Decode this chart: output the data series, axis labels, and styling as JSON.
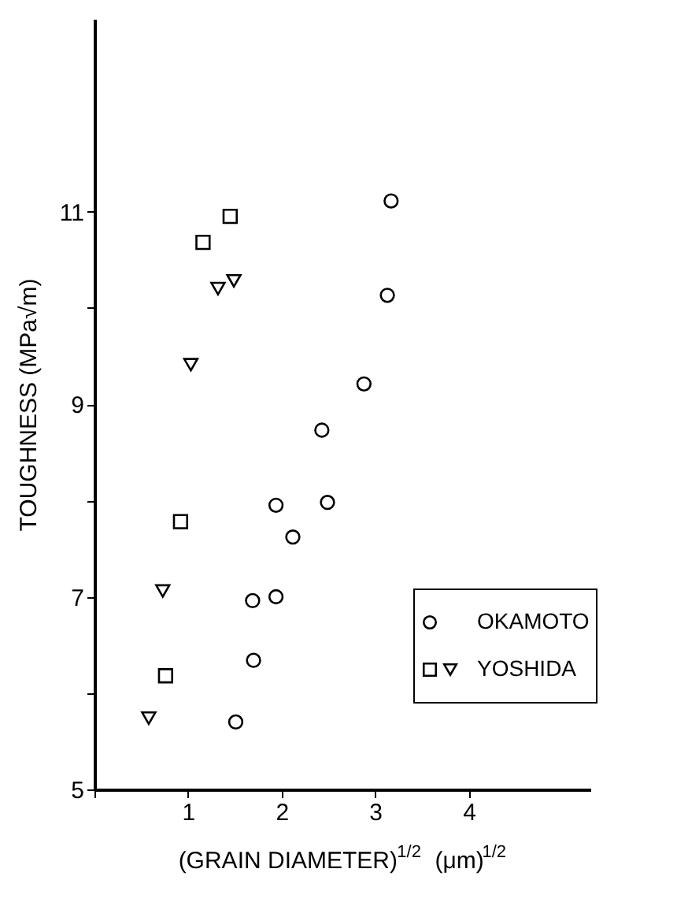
{
  "chart_data": {
    "type": "scatter",
    "xlabel": "(GRAIN DIAMETER)$^{1/2}$  (μm)$^{1/2}$",
    "ylabel": "TOUGHNESS  (MPa√m)",
    "xlim": [
      0,
      5.3
    ],
    "ylim": [
      5,
      13
    ],
    "xticks": [
      {
        "value": 0,
        "label": null
      },
      1,
      2,
      3,
      4
    ],
    "yticks": [
      5,
      {
        "value": 6,
        "label": null
      },
      7,
      {
        "value": 8,
        "label": null
      },
      9,
      {
        "value": 10,
        "label": null
      },
      11
    ],
    "grid": false,
    "legend": "bottom right",
    "series": [
      {
        "name": "OKAMOTO",
        "color": "#000000",
        "marker": "circle",
        "x": [
          1.94,
          2.49,
          2.12,
          1.69,
          1.94,
          1.7,
          1.51,
          3.17,
          3.13,
          2.88,
          2.43
        ],
        "values": [
          7.95,
          7.98,
          7.62,
          6.96,
          7.0,
          6.34,
          5.7,
          11.11,
          10.13,
          9.21,
          8.73
        ]
      },
      {
        "color": "#000000",
        "marker": "square",
        "x": [
          0.92,
          0.76,
          1.16,
          1.45
        ],
        "values": [
          7.78,
          6.18,
          10.68,
          10.95
        ]
      },
      {
        "name": "YOSHIDA",
        "color": "#000000",
        "marker": "triangle",
        "x": [
          0.73,
          0.58,
          1.32,
          1.49,
          1.03
        ],
        "values": [
          7.06,
          5.74,
          10.2,
          10.28,
          9.41
        ]
      }
    ]
  }
}
